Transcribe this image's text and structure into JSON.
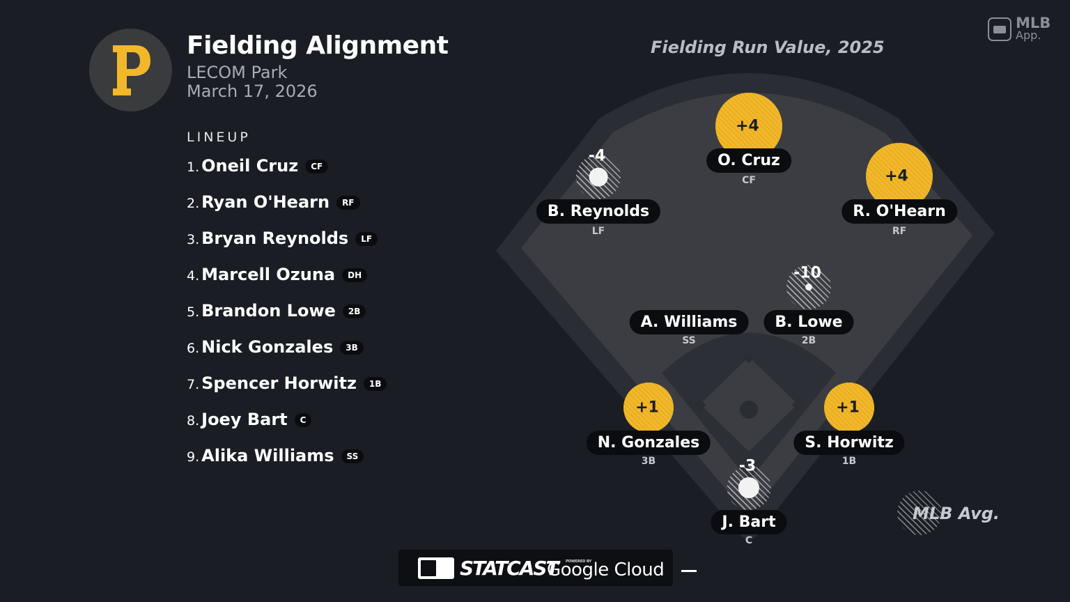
{
  "header": {
    "title": "Fielding Alignment",
    "venue": "LECOM Park",
    "date": "March 17, 2026",
    "team_logo_letter": "P",
    "team_color": "#f2b82a"
  },
  "lineup": {
    "header": "LINEUP",
    "players": [
      {
        "num": "1.",
        "name": "Oneil Cruz",
        "pos": "CF"
      },
      {
        "num": "2.",
        "name": "Ryan O'Hearn",
        "pos": "RF"
      },
      {
        "num": "3.",
        "name": "Bryan Reynolds",
        "pos": "LF"
      },
      {
        "num": "4.",
        "name": "Marcell Ozuna",
        "pos": "DH"
      },
      {
        "num": "5.",
        "name": "Brandon Lowe",
        "pos": "2B"
      },
      {
        "num": "6.",
        "name": "Nick Gonzales",
        "pos": "3B"
      },
      {
        "num": "7.",
        "name": "Spencer Horwitz",
        "pos": "1B"
      },
      {
        "num": "8.",
        "name": "Joey Bart",
        "pos": "C"
      },
      {
        "num": "9.",
        "name": "Alika Williams",
        "pos": "SS"
      }
    ]
  },
  "field": {
    "title": "Fielding Run Value, 2025",
    "players": [
      {
        "name": "O. Cruz",
        "pos": "CF",
        "value": "+4",
        "num": 4
      },
      {
        "name": "B. Reynolds",
        "pos": "LF",
        "value": "-4",
        "num": -4
      },
      {
        "name": "R. O'Hearn",
        "pos": "RF",
        "value": "+4",
        "num": 4
      },
      {
        "name": "A. Williams",
        "pos": "SS",
        "value": "",
        "num": 0
      },
      {
        "name": "B. Lowe",
        "pos": "2B",
        "value": "-10",
        "num": -10
      },
      {
        "name": "N. Gonzales",
        "pos": "3B",
        "value": "+1",
        "num": 1
      },
      {
        "name": "S. Horwitz",
        "pos": "1B",
        "value": "+1",
        "num": 1
      },
      {
        "name": "J. Bart",
        "pos": "C",
        "value": "-3",
        "num": -3
      }
    ],
    "legend": "MLB Avg."
  },
  "branding": {
    "app_line1": "MLB",
    "app_line2": "App.",
    "statcast": "STATCAST",
    "powered_by": "POWERED BY",
    "google_cloud": "Google Cloud"
  }
}
